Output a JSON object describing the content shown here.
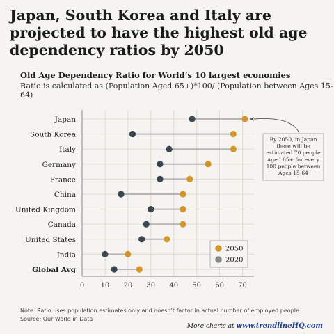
{
  "title": "Japan, South Korea and Italy are projected to have the highest old age dependency ratios by 2050",
  "subtitle": "Old Age Dependency Ratio for World’s 10 largest economies",
  "subnote": "Ratio is calculated as (Population Aged 65+)*100/ (Population between Ages 15-64)",
  "footnote_1": "Note: Ratio uses population estimates only and doesn’t factor in actual number of employed people",
  "footnote_2": "Source: Our World in Data",
  "more_charts_label": "More charts at",
  "more_charts_url": "www.trendlineHQ.com",
  "colors": {
    "y2050": "#d4962a",
    "y2020": "#3b4650",
    "connector": "#b5b5b5",
    "grid": "#dedbd4",
    "background": "#f5f4f0"
  },
  "chart_data": {
    "type": "dumbbell",
    "categories": [
      "Japan",
      "South Korea",
      "Italy",
      "Germany",
      "France",
      "China",
      "United Kingdom",
      "Canada",
      "United States",
      "India",
      "Global Avg"
    ],
    "series": [
      {
        "name": "2020",
        "values": [
          48,
          22,
          38,
          34,
          34,
          17,
          30,
          28,
          26,
          10,
          14
        ]
      },
      {
        "name": "2050",
        "values": [
          71,
          66,
          66,
          55,
          47,
          44,
          44,
          44,
          37,
          20,
          25
        ]
      }
    ],
    "xlim": [
      0,
      75
    ],
    "xticks": [
      0,
      10,
      20,
      30,
      40,
      50,
      60,
      70
    ],
    "grid": true,
    "legend_position": "bottom-right",
    "annotation": {
      "target": "Japan",
      "lines": [
        "By 2050, in Japan",
        "there will be",
        "estimated 70 people",
        "Aged 65+ for every",
        "100 people between",
        "Ages 15-64"
      ]
    }
  }
}
